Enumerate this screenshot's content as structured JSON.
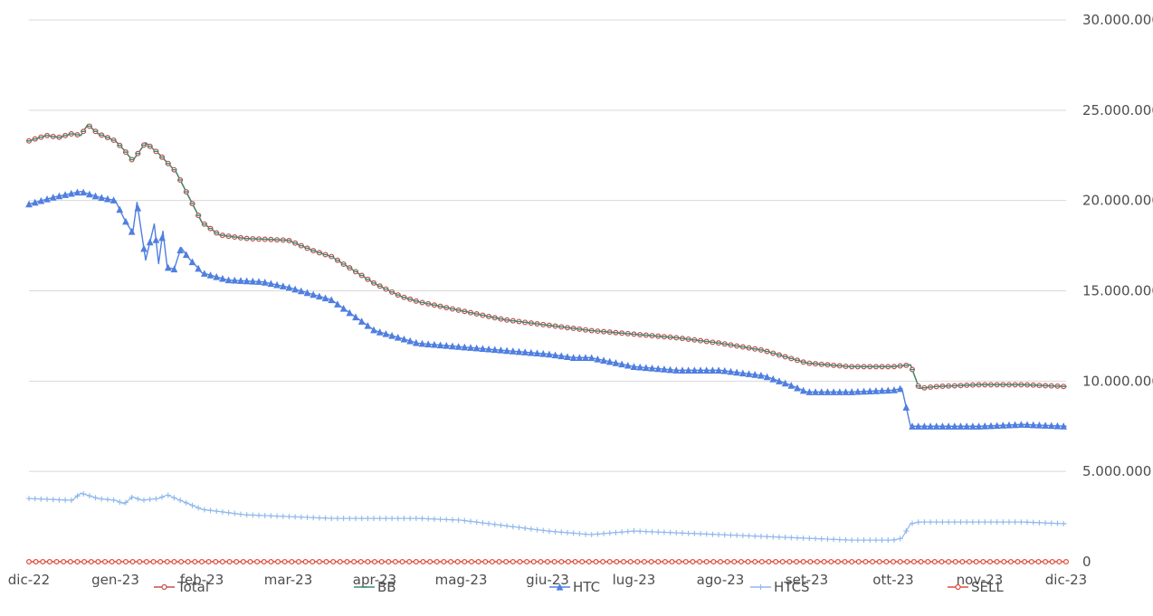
{
  "chart_data": {
    "type": "line",
    "title": "",
    "xlabel": "",
    "ylabel": "",
    "x_ticks": [
      "dic-22",
      "gen-23",
      "feb-23",
      "mar-23",
      "apr-23",
      "mag-23",
      "giu-23",
      "lug-23",
      "ago-23",
      "set-23",
      "ott-23",
      "nov-23",
      "dic-23"
    ],
    "y_ticks": [
      "30.000.000",
      "25.000.000",
      "20.000.000",
      "15.000.000",
      "10.000.000",
      "5.000.000",
      "0"
    ],
    "ylim": [
      0,
      30000000
    ],
    "grid": true,
    "legend_position": "bottom",
    "series": [
      {
        "name": "Total",
        "color": "#c0504d",
        "marker": "circle",
        "x": [
          0,
          0.2,
          0.35,
          0.5,
          0.6,
          0.68,
          0.8,
          0.9,
          1,
          1.1,
          1.2,
          1.35,
          1.5,
          1.7,
          2,
          2.2,
          2.5,
          3,
          3.3,
          3.5,
          4,
          4.3,
          4.5,
          5,
          5.5,
          6,
          6.5,
          7,
          7.5,
          8,
          8.5,
          9,
          9.5,
          10,
          10.2,
          10.3,
          10.5,
          11,
          11.5,
          12
        ],
        "values": [
          23300000,
          23600000,
          23500000,
          23700000,
          23600000,
          24200000,
          23700000,
          23500000,
          23300000,
          22800000,
          22200000,
          23200000,
          22600000,
          21600000,
          18800000,
          18100000,
          17900000,
          17800000,
          17200000,
          16900000,
          15400000,
          14700000,
          14400000,
          13900000,
          13400000,
          13100000,
          12800000,
          12600000,
          12400000,
          12100000,
          11700000,
          11000000,
          10800000,
          10800000,
          10900000,
          9600000,
          9700000,
          9800000,
          9800000,
          9700000
        ]
      },
      {
        "name": "BB",
        "color": "#3c8a74",
        "marker": "dash",
        "x": [
          0,
          0.2,
          0.35,
          0.5,
          0.6,
          0.68,
          0.8,
          0.9,
          1,
          1.1,
          1.2,
          1.35,
          1.5,
          1.7,
          2,
          2.2,
          2.5,
          3,
          3.3,
          3.5,
          4,
          4.3,
          4.5,
          5,
          5.5,
          6,
          6.5,
          7,
          7.5,
          8,
          8.5,
          9,
          9.5,
          10,
          10.2,
          10.3,
          10.5,
          11,
          11.5,
          12
        ],
        "values": [
          23300000,
          23600000,
          23500000,
          23700000,
          23600000,
          24200000,
          23700000,
          23500000,
          23300000,
          22800000,
          22200000,
          23200000,
          22600000,
          21600000,
          18800000,
          18100000,
          17900000,
          17800000,
          17200000,
          16900000,
          15400000,
          14700000,
          14400000,
          13900000,
          13400000,
          13100000,
          12800000,
          12600000,
          12400000,
          12100000,
          11700000,
          11000000,
          10800000,
          10800000,
          10900000,
          9600000,
          9700000,
          9800000,
          9800000,
          9700000
        ]
      },
      {
        "name": "HTC",
        "color": "#4f7fe0",
        "marker": "triangle",
        "x": [
          0,
          0.3,
          0.6,
          0.8,
          1,
          1.1,
          1.2,
          1.25,
          1.35,
          1.45,
          1.5,
          1.55,
          1.6,
          1.68,
          1.76,
          1.85,
          1.95,
          2,
          2.3,
          2.7,
          3,
          3.5,
          4,
          4.5,
          5,
          5.5,
          6,
          6.3,
          6.5,
          7,
          7.5,
          8,
          8.5,
          8.8,
          9,
          9.5,
          10,
          10.1,
          10.2,
          10.5,
          11,
          11.5,
          12
        ],
        "values": [
          19800000,
          20200000,
          20500000,
          20200000,
          20000000,
          19000000,
          18200000,
          19900000,
          16700000,
          18700000,
          16500000,
          18300000,
          16300000,
          16200000,
          17400000,
          16800000,
          16300000,
          16000000,
          15600000,
          15500000,
          15200000,
          14500000,
          12800000,
          12100000,
          11900000,
          11700000,
          11500000,
          11300000,
          11300000,
          10800000,
          10600000,
          10600000,
          10300000,
          9800000,
          9400000,
          9400000,
          9500000,
          9600000,
          7500000,
          7500000,
          7500000,
          7600000,
          7500000
        ]
      },
      {
        "name": "HTCS",
        "color": "#8fb9ec",
        "marker": "plus",
        "x": [
          0,
          0.5,
          0.6,
          0.8,
          1,
          1.1,
          1.2,
          1.3,
          1.5,
          1.6,
          1.7,
          1.8,
          2,
          2.5,
          3,
          3.5,
          4,
          4.5,
          5,
          5.5,
          6,
          6.5,
          7,
          7.5,
          8,
          8.5,
          9,
          9.5,
          10,
          10.1,
          10.2,
          10.3,
          10.5,
          11,
          11.5,
          12
        ],
        "values": [
          3500000,
          3400000,
          3800000,
          3500000,
          3400000,
          3200000,
          3600000,
          3400000,
          3500000,
          3700000,
          3500000,
          3300000,
          2900000,
          2600000,
          2500000,
          2400000,
          2400000,
          2400000,
          2300000,
          2000000,
          1700000,
          1500000,
          1700000,
          1600000,
          1500000,
          1400000,
          1300000,
          1200000,
          1200000,
          1300000,
          2100000,
          2200000,
          2200000,
          2200000,
          2200000,
          2100000
        ]
      },
      {
        "name": "SELL",
        "color": "#e24b3b",
        "marker": "circle",
        "x": [
          0,
          12
        ],
        "values": [
          0,
          0
        ]
      }
    ]
  }
}
